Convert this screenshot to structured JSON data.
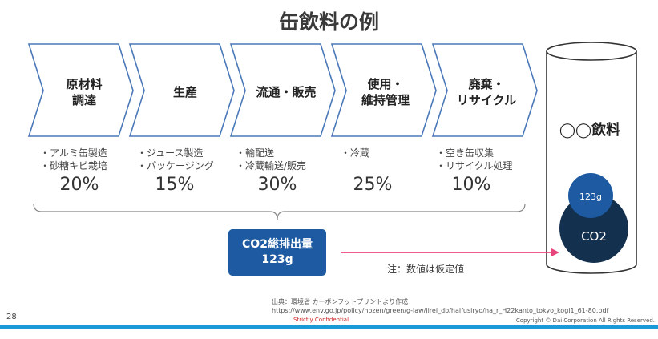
{
  "title": "缶飲料の例",
  "stages": [
    {
      "label": "原材料\n調達",
      "bullets": [
        "・アルミ缶製造",
        "・砂糖キビ栽培"
      ],
      "percent": "20%"
    },
    {
      "label": "生産",
      "bullets": [
        "・ジュース製造",
        "・パッケージング"
      ],
      "percent": "15%"
    },
    {
      "label": "流通・販売",
      "bullets": [
        "・輸配送",
        "・冷蔵輸送/販売"
      ],
      "percent": "30%"
    },
    {
      "label": "使用・\n維持管理",
      "bullets": [
        "・冷蔵"
      ],
      "percent": "25%"
    },
    {
      "label": "廃棄・\nリサイクル",
      "bullets": [
        "・空き缶収集",
        "・リサイクル処理"
      ],
      "percent": "10%"
    }
  ],
  "total": {
    "line1": "CO2総排出量",
    "line2": "123g"
  },
  "note": "注：数値は仮定値",
  "drink": {
    "label": "◯◯飲料",
    "small_value": "123g",
    "large_label": "CO2"
  },
  "source": {
    "line1": "出典：環境省 カーボンフットプリントより作成",
    "line2": "https://www.env.go.jp/policy/hozen/green/g-law/jirei_db/haifusiryo/ha_r_H22kanto_tokyo_kogi1_61-80.pdf"
  },
  "footer": {
    "page_number": "28",
    "confidential": "Strictly Confidential",
    "copyright": "Copyright © Dai Corporation All Rights Reserved."
  },
  "colors": {
    "arrow_stroke": "#4a78b8",
    "total_box": "#1d5aa1",
    "pointer_arrow": "#e8467a",
    "circle_small": "#1d5aa1",
    "circle_large": "#13304f",
    "footer_bar": "#1a9ad6"
  }
}
